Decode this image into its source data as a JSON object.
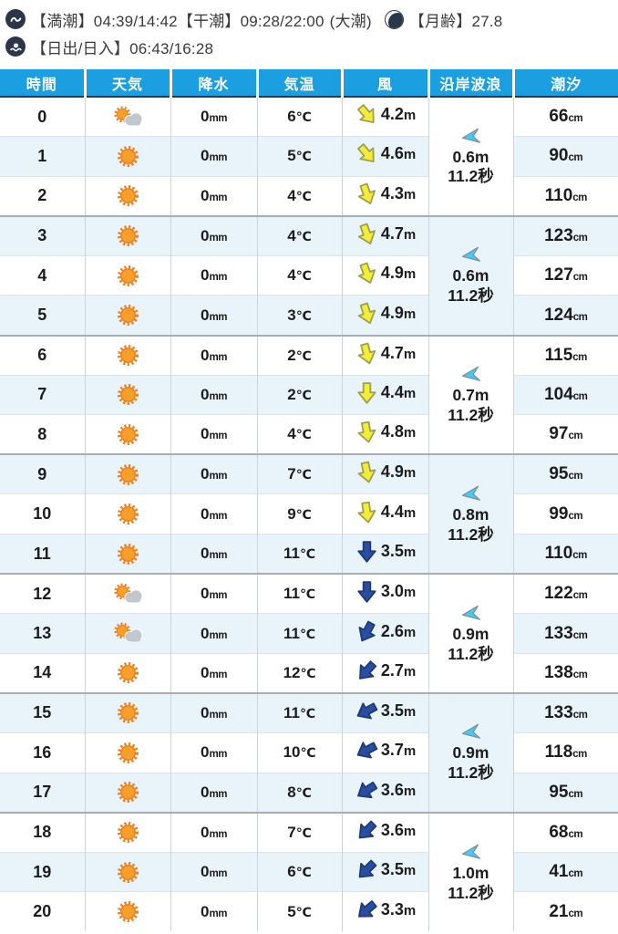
{
  "summary": {
    "line1": {
      "tides": "【満潮】04:39/14:42【干潮】09:28/22:00",
      "tide_phase": "(大潮)",
      "moon": "【月齢】27.8"
    },
    "line2": {
      "sun": "【日出/日入】06:43/16:28"
    }
  },
  "icons": {
    "tide": "wave-in-circle",
    "sunrise": "sun-over-waves-in-circle",
    "moon": "waning-crescent-moon",
    "sunny": "orange-sun",
    "partly_cloudy": "sun-with-cloud",
    "wind": "direction-arrow",
    "wave": "left-pointing-dart"
  },
  "colors": {
    "header_bg": "#1b9fe0",
    "row_alt_bg": "#e9f3fa",
    "dark_navy": "#2b3748",
    "wind_strong_arrow": "#f5ec3a",
    "wind_weak_arrow": "#2b4da0",
    "wave_arrow": "#43cbf5",
    "sun": "#f6a02b"
  },
  "table": {
    "headers": [
      "時間",
      "天気",
      "降水",
      "気温",
      "風",
      "沿岸波浪",
      "潮汐"
    ],
    "units": {
      "precip": "mm",
      "temp": "℃",
      "wind": "m",
      "wave_height": "m",
      "wave_period": "秒",
      "tide": "cm"
    },
    "rows": [
      {
        "time": "0",
        "weather": "partly_cloudy",
        "precip": "0",
        "temp": "6",
        "wind_dir_deg": -40,
        "wind_speed": "4.2",
        "wind_strength": "strong",
        "tide": "66"
      },
      {
        "time": "1",
        "weather": "sunny",
        "precip": "0",
        "temp": "5",
        "wind_dir_deg": -40,
        "wind_speed": "4.6",
        "wind_strength": "strong",
        "tide": "90"
      },
      {
        "time": "2",
        "weather": "sunny",
        "precip": "0",
        "temp": "4",
        "wind_dir_deg": -20,
        "wind_speed": "4.3",
        "wind_strength": "strong",
        "tide": "110"
      },
      {
        "time": "3",
        "weather": "sunny",
        "precip": "0",
        "temp": "4",
        "wind_dir_deg": -20,
        "wind_speed": "4.7",
        "wind_strength": "strong",
        "tide": "123"
      },
      {
        "time": "4",
        "weather": "sunny",
        "precip": "0",
        "temp": "4",
        "wind_dir_deg": -20,
        "wind_speed": "4.9",
        "wind_strength": "strong",
        "tide": "127"
      },
      {
        "time": "5",
        "weather": "sunny",
        "precip": "0",
        "temp": "3",
        "wind_dir_deg": -18,
        "wind_speed": "4.9",
        "wind_strength": "strong",
        "tide": "124"
      },
      {
        "time": "6",
        "weather": "sunny",
        "precip": "0",
        "temp": "2",
        "wind_dir_deg": -15,
        "wind_speed": "4.7",
        "wind_strength": "strong",
        "tide": "115"
      },
      {
        "time": "7",
        "weather": "sunny",
        "precip": "0",
        "temp": "2",
        "wind_dir_deg": 0,
        "wind_speed": "4.4",
        "wind_strength": "strong",
        "tide": "104"
      },
      {
        "time": "8",
        "weather": "sunny",
        "precip": "0",
        "temp": "4",
        "wind_dir_deg": -10,
        "wind_speed": "4.8",
        "wind_strength": "strong",
        "tide": "97"
      },
      {
        "time": "9",
        "weather": "sunny",
        "precip": "0",
        "temp": "7",
        "wind_dir_deg": -12,
        "wind_speed": "4.9",
        "wind_strength": "strong",
        "tide": "95"
      },
      {
        "time": "10",
        "weather": "sunny",
        "precip": "0",
        "temp": "9",
        "wind_dir_deg": -8,
        "wind_speed": "4.4",
        "wind_strength": "strong",
        "tide": "99"
      },
      {
        "time": "11",
        "weather": "sunny",
        "precip": "0",
        "temp": "11",
        "wind_dir_deg": 0,
        "wind_speed": "3.5",
        "wind_strength": "weak",
        "tide": "110"
      },
      {
        "time": "12",
        "weather": "partly_cloudy",
        "precip": "0",
        "temp": "11",
        "wind_dir_deg": 0,
        "wind_speed": "3.0",
        "wind_strength": "weak",
        "tide": "122"
      },
      {
        "time": "13",
        "weather": "partly_cloudy",
        "precip": "0",
        "temp": "11",
        "wind_dir_deg": 28,
        "wind_speed": "2.6",
        "wind_strength": "weak",
        "tide": "133"
      },
      {
        "time": "14",
        "weather": "sunny",
        "precip": "0",
        "temp": "12",
        "wind_dir_deg": 42,
        "wind_speed": "2.7",
        "wind_strength": "weak",
        "tide": "138"
      },
      {
        "time": "15",
        "weather": "sunny",
        "precip": "0",
        "temp": "11",
        "wind_dir_deg": 62,
        "wind_speed": "3.5",
        "wind_strength": "weak",
        "tide": "133"
      },
      {
        "time": "16",
        "weather": "sunny",
        "precip": "0",
        "temp": "10",
        "wind_dir_deg": 62,
        "wind_speed": "3.7",
        "wind_strength": "weak",
        "tide": "118"
      },
      {
        "time": "17",
        "weather": "sunny",
        "precip": "0",
        "temp": "8",
        "wind_dir_deg": 58,
        "wind_speed": "3.6",
        "wind_strength": "weak",
        "tide": "95"
      },
      {
        "time": "18",
        "weather": "sunny",
        "precip": "0",
        "temp": "7",
        "wind_dir_deg": 45,
        "wind_speed": "3.6",
        "wind_strength": "weak",
        "tide": "68"
      },
      {
        "time": "19",
        "weather": "sunny",
        "precip": "0",
        "temp": "6",
        "wind_dir_deg": 45,
        "wind_speed": "3.5",
        "wind_strength": "weak",
        "tide": "41"
      },
      {
        "time": "20",
        "weather": "sunny",
        "precip": "0",
        "temp": "5",
        "wind_dir_deg": 50,
        "wind_speed": "3.3",
        "wind_strength": "weak",
        "tide": "21"
      }
    ],
    "wave_groups": [
      {
        "height": "0.6",
        "period": "11.2",
        "direction": "left"
      },
      {
        "height": "0.6",
        "period": "11.2",
        "direction": "left"
      },
      {
        "height": "0.7",
        "period": "11.2",
        "direction": "left"
      },
      {
        "height": "0.8",
        "period": "11.2",
        "direction": "left"
      },
      {
        "height": "0.9",
        "period": "11.2",
        "direction": "left"
      },
      {
        "height": "0.9",
        "period": "11.2",
        "direction": "left"
      },
      {
        "height": "1.0",
        "period": "11.2",
        "direction": "left"
      }
    ]
  }
}
